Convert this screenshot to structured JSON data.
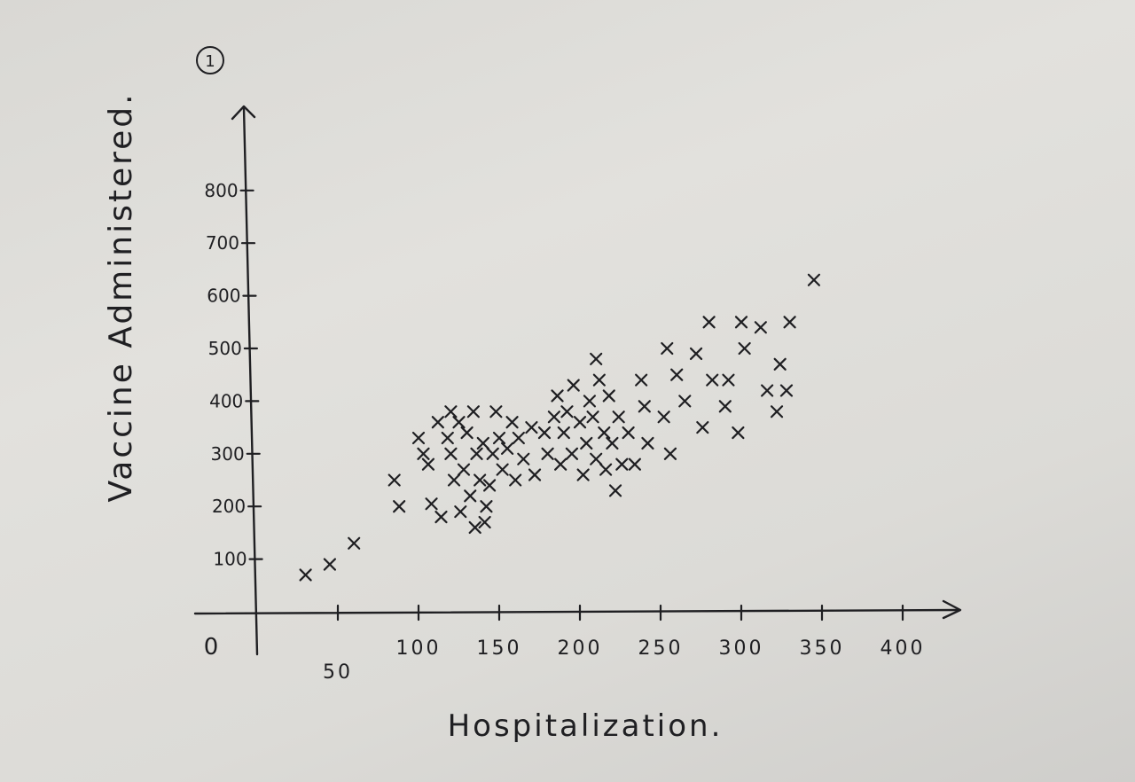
{
  "page_number": "1",
  "chart_data": {
    "type": "scatter",
    "title": "",
    "xlabel": "Hospitalization.",
    "ylabel": "Vaccine Administered.",
    "origin_label": "0",
    "xlim": [
      0,
      420
    ],
    "ylim": [
      0,
      880
    ],
    "x_ticks": [
      {
        "value": 50,
        "label": "50"
      },
      {
        "value": 100,
        "label": "100"
      },
      {
        "value": 150,
        "label": "150"
      },
      {
        "value": 200,
        "label": "200"
      },
      {
        "value": 250,
        "label": "250"
      },
      {
        "value": 300,
        "label": "300"
      },
      {
        "value": 350,
        "label": "350"
      },
      {
        "value": 400,
        "label": "400"
      }
    ],
    "y_ticks": [
      {
        "value": 100,
        "label": "100"
      },
      {
        "value": 200,
        "label": "200"
      },
      {
        "value": 300,
        "label": "300"
      },
      {
        "value": 400,
        "label": "400"
      },
      {
        "value": 500,
        "label": "500"
      },
      {
        "value": 600,
        "label": "600"
      },
      {
        "value": 700,
        "label": "700"
      },
      {
        "value": 800,
        "label": "800"
      }
    ],
    "grid": false,
    "legend": false,
    "points": [
      {
        "x": 30,
        "y": 70
      },
      {
        "x": 45,
        "y": 90
      },
      {
        "x": 60,
        "y": 130
      },
      {
        "x": 85,
        "y": 250
      },
      {
        "x": 88,
        "y": 200
      },
      {
        "x": 100,
        "y": 330
      },
      {
        "x": 103,
        "y": 300
      },
      {
        "x": 106,
        "y": 280
      },
      {
        "x": 108,
        "y": 205
      },
      {
        "x": 112,
        "y": 360
      },
      {
        "x": 114,
        "y": 180
      },
      {
        "x": 118,
        "y": 330
      },
      {
        "x": 120,
        "y": 380
      },
      {
        "x": 120,
        "y": 300
      },
      {
        "x": 122,
        "y": 250
      },
      {
        "x": 125,
        "y": 360
      },
      {
        "x": 126,
        "y": 190
      },
      {
        "x": 128,
        "y": 270
      },
      {
        "x": 130,
        "y": 340
      },
      {
        "x": 132,
        "y": 220
      },
      {
        "x": 134,
        "y": 380
      },
      {
        "x": 135,
        "y": 160
      },
      {
        "x": 136,
        "y": 300
      },
      {
        "x": 138,
        "y": 250
      },
      {
        "x": 140,
        "y": 320
      },
      {
        "x": 141,
        "y": 170
      },
      {
        "x": 142,
        "y": 200
      },
      {
        "x": 144,
        "y": 240
      },
      {
        "x": 146,
        "y": 300
      },
      {
        "x": 148,
        "y": 380
      },
      {
        "x": 150,
        "y": 330
      },
      {
        "x": 152,
        "y": 270
      },
      {
        "x": 155,
        "y": 310
      },
      {
        "x": 158,
        "y": 360
      },
      {
        "x": 160,
        "y": 250
      },
      {
        "x": 162,
        "y": 330
      },
      {
        "x": 165,
        "y": 290
      },
      {
        "x": 170,
        "y": 350
      },
      {
        "x": 172,
        "y": 260
      },
      {
        "x": 178,
        "y": 340
      },
      {
        "x": 180,
        "y": 300
      },
      {
        "x": 184,
        "y": 370
      },
      {
        "x": 186,
        "y": 410
      },
      {
        "x": 188,
        "y": 280
      },
      {
        "x": 190,
        "y": 340
      },
      {
        "x": 192,
        "y": 380
      },
      {
        "x": 195,
        "y": 300
      },
      {
        "x": 196,
        "y": 430
      },
      {
        "x": 200,
        "y": 360
      },
      {
        "x": 202,
        "y": 260
      },
      {
        "x": 204,
        "y": 320
      },
      {
        "x": 206,
        "y": 400
      },
      {
        "x": 208,
        "y": 370
      },
      {
        "x": 210,
        "y": 480
      },
      {
        "x": 210,
        "y": 290
      },
      {
        "x": 212,
        "y": 440
      },
      {
        "x": 215,
        "y": 340
      },
      {
        "x": 216,
        "y": 270
      },
      {
        "x": 218,
        "y": 410
      },
      {
        "x": 220,
        "y": 320
      },
      {
        "x": 222,
        "y": 230
      },
      {
        "x": 224,
        "y": 370
      },
      {
        "x": 226,
        "y": 280
      },
      {
        "x": 230,
        "y": 340
      },
      {
        "x": 234,
        "y": 280
      },
      {
        "x": 238,
        "y": 440
      },
      {
        "x": 240,
        "y": 390
      },
      {
        "x": 242,
        "y": 320
      },
      {
        "x": 252,
        "y": 370
      },
      {
        "x": 254,
        "y": 500
      },
      {
        "x": 256,
        "y": 300
      },
      {
        "x": 260,
        "y": 450
      },
      {
        "x": 265,
        "y": 400
      },
      {
        "x": 272,
        "y": 490
      },
      {
        "x": 276,
        "y": 350
      },
      {
        "x": 280,
        "y": 550
      },
      {
        "x": 282,
        "y": 440
      },
      {
        "x": 290,
        "y": 390
      },
      {
        "x": 292,
        "y": 440
      },
      {
        "x": 298,
        "y": 340
      },
      {
        "x": 300,
        "y": 550
      },
      {
        "x": 302,
        "y": 500
      },
      {
        "x": 312,
        "y": 540
      },
      {
        "x": 316,
        "y": 420
      },
      {
        "x": 322,
        "y": 380
      },
      {
        "x": 324,
        "y": 470
      },
      {
        "x": 328,
        "y": 420
      },
      {
        "x": 330,
        "y": 550
      },
      {
        "x": 345,
        "y": 630
      }
    ]
  }
}
